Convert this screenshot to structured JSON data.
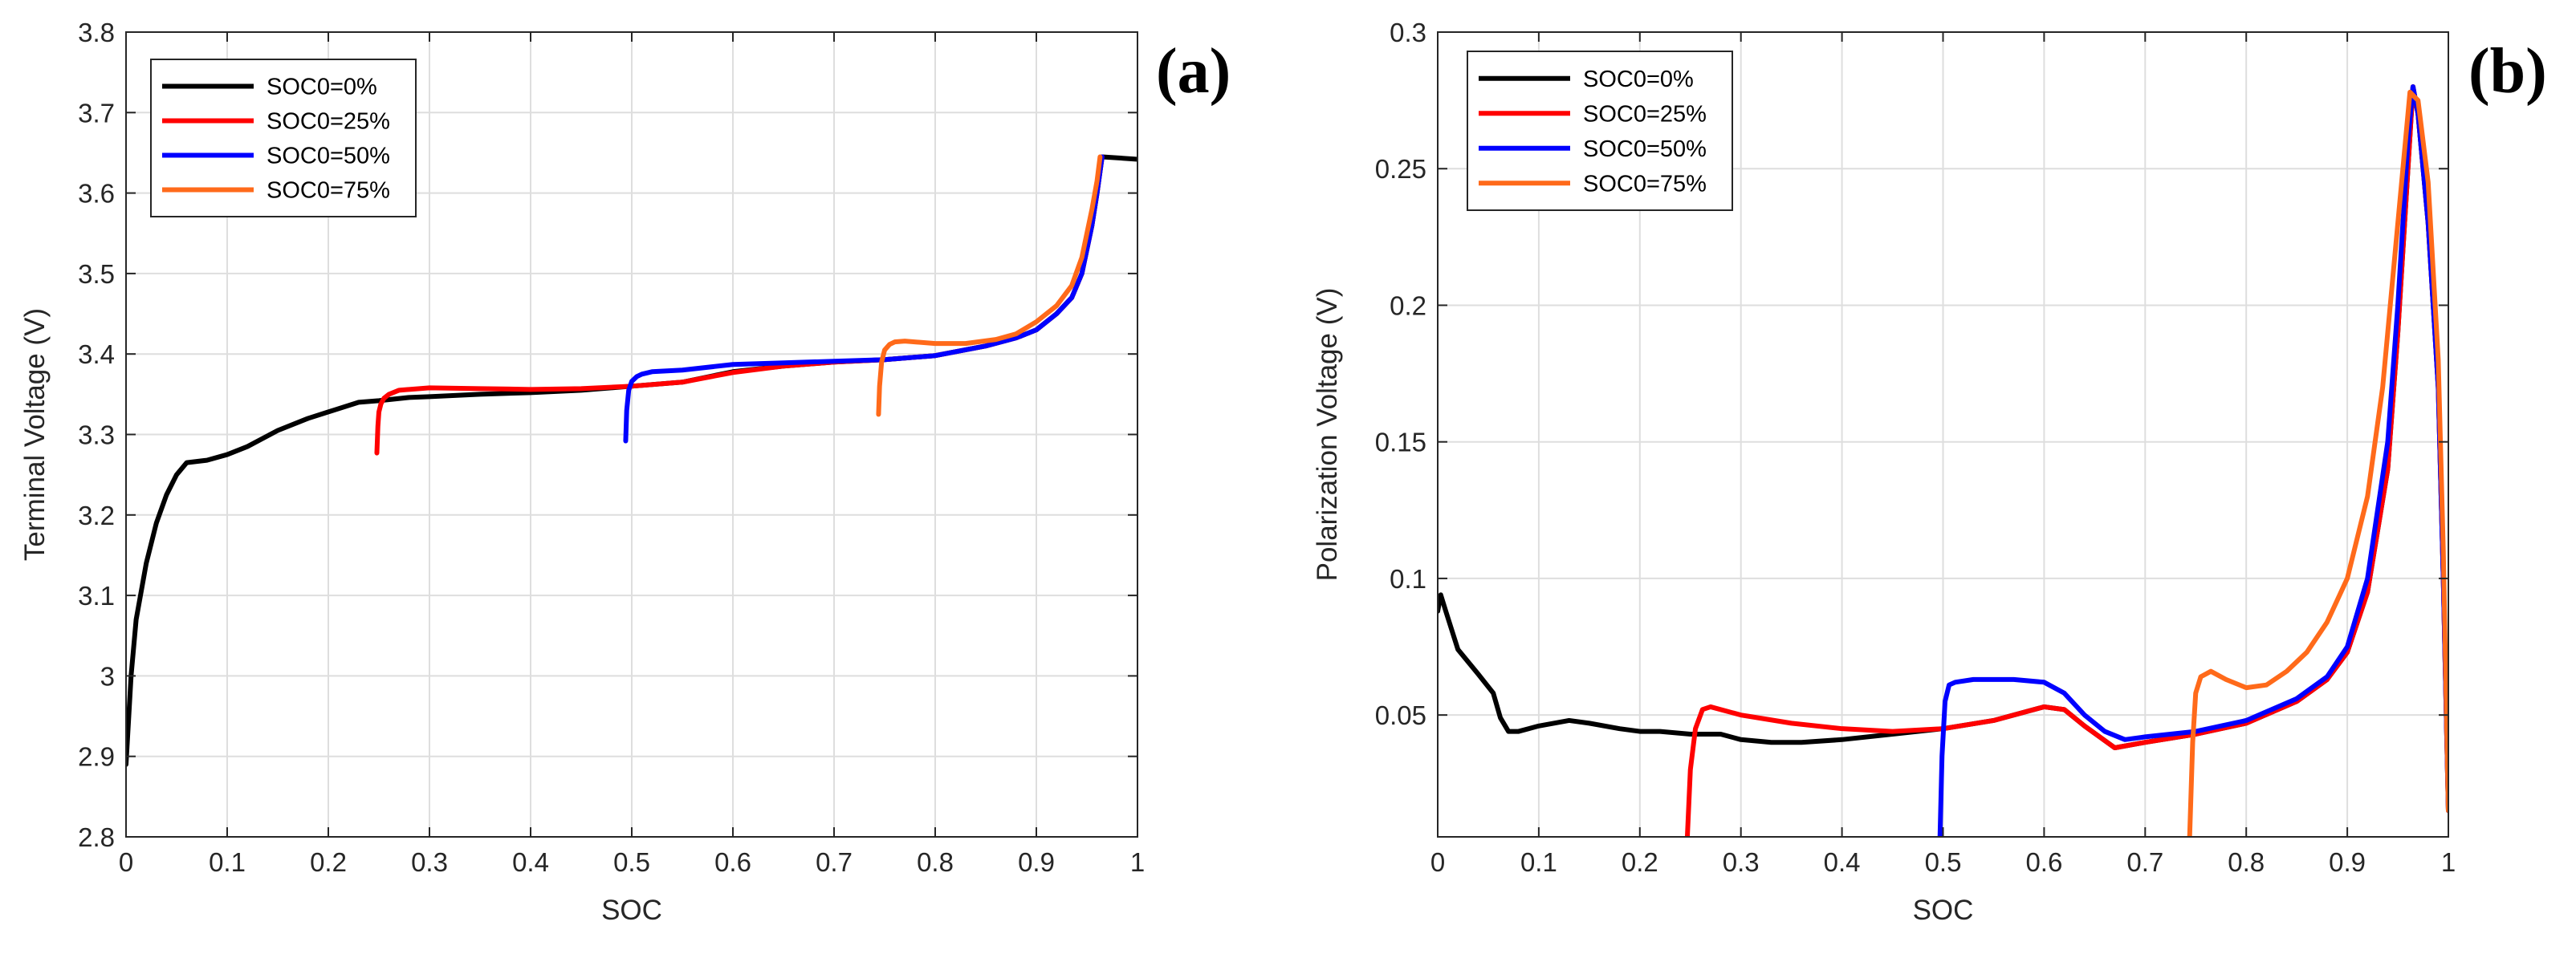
{
  "chart_data": [
    {
      "type": "line",
      "panel_label": "(a)",
      "title": "",
      "xlabel": "SOC",
      "ylabel": "Terminal Voltage (V)",
      "xlim": [
        0,
        1
      ],
      "ylim": [
        2.8,
        3.8
      ],
      "xticks": [
        0,
        0.1,
        0.2,
        0.3,
        0.4,
        0.5,
        0.6,
        0.7,
        0.8,
        0.9,
        1
      ],
      "xtick_labels": [
        "0",
        "0.1",
        "0.2",
        "0.3",
        "0.4",
        "0.5",
        "0.6",
        "0.7",
        "0.8",
        "0.9",
        "1"
      ],
      "yticks": [
        2.8,
        2.9,
        3.0,
        3.1,
        3.2,
        3.3,
        3.4,
        3.5,
        3.6,
        3.7,
        3.8
      ],
      "ytick_labels": [
        "2.8",
        "2.9",
        "3",
        "3.1",
        "3.2",
        "3.3",
        "3.4",
        "3.5",
        "3.6",
        "3.7",
        "3.8"
      ],
      "grid": true,
      "legend_position": "top-left",
      "series": [
        {
          "name": "SOC0=0%",
          "color": "#000000",
          "x": [
            0,
            0.005,
            0.01,
            0.02,
            0.03,
            0.04,
            0.05,
            0.06,
            0.08,
            0.1,
            0.12,
            0.15,
            0.18,
            0.2,
            0.23,
            0.25,
            0.28,
            0.3,
            0.35,
            0.4,
            0.45,
            0.5,
            0.55,
            0.6,
            0.65,
            0.7,
            0.75,
            0.8,
            0.85,
            0.88,
            0.9,
            0.92,
            0.935,
            0.945,
            0.955,
            0.96,
            0.965,
            1.0
          ],
          "y": [
            2.89,
            3.0,
            3.07,
            3.14,
            3.19,
            3.225,
            3.25,
            3.265,
            3.268,
            3.275,
            3.285,
            3.305,
            3.32,
            3.328,
            3.34,
            3.342,
            3.346,
            3.347,
            3.35,
            3.352,
            3.355,
            3.36,
            3.365,
            3.378,
            3.385,
            3.39,
            3.393,
            3.398,
            3.41,
            3.42,
            3.43,
            3.45,
            3.47,
            3.5,
            3.56,
            3.6,
            3.645,
            3.642
          ]
        },
        {
          "name": "SOC0=25%",
          "color": "#ff0000",
          "x": [
            0.248,
            0.249,
            0.25,
            0.252,
            0.255,
            0.26,
            0.27,
            0.3,
            0.35,
            0.4,
            0.45,
            0.5,
            0.55,
            0.6,
            0.65,
            0.7,
            0.75,
            0.8,
            0.85,
            0.88,
            0.9,
            0.92,
            0.935,
            0.945,
            0.955,
            0.96,
            0.965
          ],
          "y": [
            3.277,
            3.31,
            3.328,
            3.338,
            3.345,
            3.35,
            3.355,
            3.358,
            3.357,
            3.356,
            3.357,
            3.36,
            3.365,
            3.377,
            3.385,
            3.39,
            3.393,
            3.398,
            3.41,
            3.42,
            3.43,
            3.45,
            3.47,
            3.5,
            3.56,
            3.6,
            3.645
          ]
        },
        {
          "name": "SOC0=50%",
          "color": "#0000ff",
          "x": [
            0.494,
            0.495,
            0.497,
            0.5,
            0.505,
            0.51,
            0.52,
            0.55,
            0.6,
            0.65,
            0.7,
            0.75,
            0.8,
            0.85,
            0.88,
            0.9,
            0.92,
            0.935,
            0.945,
            0.955,
            0.96,
            0.965
          ],
          "y": [
            3.292,
            3.33,
            3.355,
            3.366,
            3.372,
            3.375,
            3.378,
            3.38,
            3.387,
            3.389,
            3.391,
            3.393,
            3.398,
            3.41,
            3.42,
            3.43,
            3.45,
            3.47,
            3.5,
            3.56,
            3.6,
            3.645
          ]
        },
        {
          "name": "SOC0=75%",
          "color": "#ff6a1a",
          "x": [
            0.744,
            0.745,
            0.747,
            0.75,
            0.755,
            0.76,
            0.77,
            0.8,
            0.83,
            0.86,
            0.88,
            0.9,
            0.92,
            0.935,
            0.945,
            0.955,
            0.96,
            0.963
          ],
          "y": [
            3.325,
            3.36,
            3.39,
            3.405,
            3.412,
            3.415,
            3.416,
            3.413,
            3.413,
            3.418,
            3.425,
            3.44,
            3.46,
            3.485,
            3.52,
            3.58,
            3.615,
            3.645
          ]
        }
      ]
    },
    {
      "type": "line",
      "panel_label": "(b)",
      "title": "",
      "xlabel": "SOC",
      "ylabel": "Polarization Voltage (V)",
      "xlim": [
        0,
        1
      ],
      "ylim": [
        0.0054,
        0.3
      ],
      "xticks": [
        0,
        0.1,
        0.2,
        0.3,
        0.4,
        0.5,
        0.6,
        0.7,
        0.8,
        0.9,
        1
      ],
      "xtick_labels": [
        "0",
        "0.1",
        "0.2",
        "0.3",
        "0.4",
        "0.5",
        "0.6",
        "0.7",
        "0.8",
        "0.9",
        "1"
      ],
      "yticks": [
        0.05,
        0.1,
        0.15,
        0.2,
        0.25,
        0.3
      ],
      "ytick_labels": [
        "0.05",
        "0.1",
        "0.15",
        "0.2",
        "0.25",
        "0.3"
      ],
      "grid": true,
      "legend_position": "top-left",
      "series": [
        {
          "name": "SOC0=0%",
          "color": "#000000",
          "x": [
            0,
            0.003,
            0.008,
            0.02,
            0.04,
            0.055,
            0.062,
            0.07,
            0.08,
            0.1,
            0.13,
            0.15,
            0.18,
            0.2,
            0.22,
            0.25,
            0.28,
            0.3,
            0.33,
            0.36,
            0.4,
            0.45,
            0.5,
            0.55,
            0.6,
            0.62,
            0.64,
            0.67,
            0.7,
            0.75,
            0.8,
            0.85,
            0.88,
            0.9,
            0.92,
            0.94,
            0.95,
            0.96,
            0.965,
            0.97,
            0.98,
            0.99,
            0.995,
            1.0
          ],
          "y": [
            0.088,
            0.094,
            0.088,
            0.074,
            0.065,
            0.058,
            0.049,
            0.044,
            0.044,
            0.046,
            0.048,
            0.047,
            0.045,
            0.044,
            0.044,
            0.043,
            0.043,
            0.041,
            0.04,
            0.04,
            0.041,
            0.043,
            0.045,
            0.048,
            0.053,
            0.052,
            0.046,
            0.038,
            0.04,
            0.043,
            0.047,
            0.055,
            0.063,
            0.073,
            0.095,
            0.14,
            0.19,
            0.25,
            0.28,
            0.27,
            0.23,
            0.17,
            0.1,
            0.015
          ]
        },
        {
          "name": "SOC0=25%",
          "color": "#ff0000",
          "x": [
            0.247,
            0.25,
            0.255,
            0.262,
            0.27,
            0.3,
            0.35,
            0.4,
            0.45,
            0.5,
            0.55,
            0.6,
            0.62,
            0.64,
            0.67,
            0.7,
            0.75,
            0.8,
            0.85,
            0.88,
            0.9,
            0.92,
            0.94,
            0.95,
            0.96,
            0.965,
            0.97,
            0.98,
            0.99,
            0.995,
            1.0
          ],
          "y": [
            0.0054,
            0.03,
            0.045,
            0.052,
            0.053,
            0.05,
            0.047,
            0.045,
            0.044,
            0.045,
            0.048,
            0.053,
            0.052,
            0.046,
            0.038,
            0.04,
            0.043,
            0.047,
            0.055,
            0.063,
            0.073,
            0.095,
            0.14,
            0.19,
            0.25,
            0.28,
            0.27,
            0.23,
            0.17,
            0.1,
            0.015
          ]
        },
        {
          "name": "SOC0=50%",
          "color": "#0000ff",
          "x": [
            0.497,
            0.499,
            0.502,
            0.506,
            0.512,
            0.53,
            0.57,
            0.6,
            0.62,
            0.64,
            0.66,
            0.68,
            0.7,
            0.75,
            0.8,
            0.85,
            0.88,
            0.9,
            0.92,
            0.94,
            0.95,
            0.96,
            0.965,
            0.97,
            0.98,
            0.99,
            0.995,
            1.0
          ],
          "y": [
            0.0054,
            0.035,
            0.055,
            0.061,
            0.062,
            0.063,
            0.063,
            0.062,
            0.058,
            0.05,
            0.044,
            0.041,
            0.042,
            0.044,
            0.048,
            0.056,
            0.064,
            0.075,
            0.1,
            0.15,
            0.2,
            0.26,
            0.28,
            0.27,
            0.23,
            0.17,
            0.1,
            0.015
          ]
        },
        {
          "name": "SOC0=75%",
          "color": "#ff6a1a",
          "x": [
            0.744,
            0.747,
            0.75,
            0.755,
            0.765,
            0.78,
            0.8,
            0.82,
            0.84,
            0.86,
            0.88,
            0.9,
            0.92,
            0.935,
            0.945,
            0.955,
            0.962,
            0.97,
            0.98,
            0.99,
            0.995,
            1.0
          ],
          "y": [
            0.0054,
            0.04,
            0.058,
            0.064,
            0.066,
            0.063,
            0.06,
            0.061,
            0.066,
            0.073,
            0.084,
            0.1,
            0.13,
            0.17,
            0.21,
            0.25,
            0.278,
            0.275,
            0.245,
            0.18,
            0.11,
            0.015
          ]
        }
      ]
    }
  ]
}
